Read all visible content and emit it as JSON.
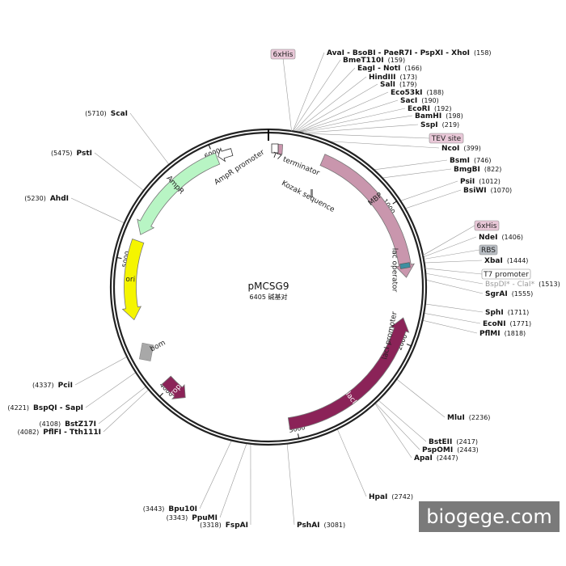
{
  "plasmid": {
    "name": "pMCSG9",
    "size": "6405 碱基对"
  },
  "watermark": "biogege.com",
  "colors": {
    "backbone": "#222222",
    "MBP": "#c996ad",
    "lacI": "#8b2358",
    "AmpR": "#b8f5c4",
    "ori": "#f5f500",
    "rop": "#8b2358",
    "bom": "#a8a8a8",
    "AmpR_promoter": "#ffffff",
    "lac_operator": "#3c8fa0",
    "T7_terminator": "#c996ad",
    "tag_fill": "#e9c8d8",
    "tag_grey": "#b9bec4"
  },
  "ticks": [
    {
      "bp": 1000,
      "label": "1000"
    },
    {
      "bp": 2000,
      "label": "2000"
    },
    {
      "bp": 3000,
      "label": "3000"
    },
    {
      "bp": 4000,
      "label": "4000"
    },
    {
      "bp": 5000,
      "label": "5000"
    },
    {
      "bp": 6000,
      "label": "6000"
    }
  ],
  "features": [
    {
      "name": "MBP",
      "label": "MBP",
      "start": 410,
      "end": 1530,
      "dir": 1,
      "kind": "arrow"
    },
    {
      "name": "lacI",
      "label": "lacI",
      "start": 1830,
      "end": 3050,
      "dir": -1,
      "kind": "arrow"
    },
    {
      "name": "AmpR",
      "label": "AmpR",
      "start": 5200,
      "end": 6020,
      "dir": -1,
      "kind": "arrow"
    },
    {
      "name": "ori",
      "label": "ori",
      "start": 4560,
      "end": 5150,
      "dir": -1,
      "kind": "arrow"
    },
    {
      "name": "rop",
      "label": "rop",
      "start": 3860,
      "end": 4050,
      "dir": -1,
      "kind": "arrow"
    },
    {
      "name": "bom",
      "label": "bom",
      "start": 4280,
      "end": 4330,
      "dir": 1,
      "kind": "box"
    },
    {
      "name": "AmpR_promoter",
      "label": "AmpR promoter",
      "start": 6030,
      "end": 6135,
      "dir": -1,
      "kind": "arrow"
    },
    {
      "name": "T7_terminator",
      "label": "T7 terminator",
      "start": 60,
      "end": 110,
      "dir": -1,
      "kind": "small"
    },
    {
      "name": "lac_operator",
      "label": "lac operator",
      "start": 1432,
      "end": 1454,
      "dir": 1,
      "kind": "small"
    }
  ],
  "feature_labels": [
    {
      "key": "T7_terminator",
      "text": "T7 terminator"
    },
    {
      "key": "Kozak",
      "text": "Kozak sequence"
    },
    {
      "key": "AmpR_promoter",
      "text": "AmpR promoter"
    },
    {
      "key": "lac_operator",
      "text": "lac operator"
    },
    {
      "key": "lacI_promoter",
      "text": "lacI promoter"
    }
  ],
  "sites": [
    {
      "name": "AvaI - BsoBI - PaeR7I - PspXI - XhoI",
      "pos": "(158)",
      "bp": 158,
      "side": "right"
    },
    {
      "name": "BmeT110I",
      "pos": "(159)",
      "bp": 159,
      "side": "right"
    },
    {
      "name": "EagI - NotI",
      "pos": "(166)",
      "bp": 166,
      "side": "right"
    },
    {
      "name": "HindIII",
      "pos": "(173)",
      "bp": 173,
      "side": "right"
    },
    {
      "name": "SalI",
      "pos": "(179)",
      "bp": 179,
      "side": "right"
    },
    {
      "name": "Eco53kI",
      "pos": "(188)",
      "bp": 188,
      "side": "right"
    },
    {
      "name": "SacI",
      "pos": "(190)",
      "bp": 190,
      "side": "right"
    },
    {
      "name": "EcoRI",
      "pos": "(192)",
      "bp": 192,
      "side": "right"
    },
    {
      "name": "BamHI",
      "pos": "(198)",
      "bp": 198,
      "side": "right"
    },
    {
      "name": "SspI",
      "pos": "(219)",
      "bp": 219,
      "side": "right"
    },
    {
      "name": "NcoI",
      "pos": "(399)",
      "bp": 399,
      "side": "right"
    },
    {
      "name": "BsmI",
      "pos": "(746)",
      "bp": 746,
      "side": "right"
    },
    {
      "name": "BmgBI",
      "pos": "(822)",
      "bp": 822,
      "side": "right"
    },
    {
      "name": "PsiI",
      "pos": "(1012)",
      "bp": 1012,
      "side": "right"
    },
    {
      "name": "BsiWI",
      "pos": "(1070)",
      "bp": 1070,
      "side": "right"
    },
    {
      "name": "NdeI",
      "pos": "(1406)",
      "bp": 1406,
      "side": "right"
    },
    {
      "name": "XbaI",
      "pos": "(1444)",
      "bp": 1444,
      "side": "right"
    },
    {
      "name": "BspDI* - ClaI*",
      "pos": "(1513)",
      "bp": 1513,
      "side": "right",
      "grey": true
    },
    {
      "name": "SgrAI",
      "pos": "(1555)",
      "bp": 1555,
      "side": "right"
    },
    {
      "name": "SphI",
      "pos": "(1711)",
      "bp": 1711,
      "side": "right"
    },
    {
      "name": "EcoNI",
      "pos": "(1771)",
      "bp": 1771,
      "side": "right"
    },
    {
      "name": "PflMI",
      "pos": "(1818)",
      "bp": 1818,
      "side": "right"
    },
    {
      "name": "MluI",
      "pos": "(2236)",
      "bp": 2236,
      "side": "right"
    },
    {
      "name": "BstEII",
      "pos": "(2417)",
      "bp": 2417,
      "side": "right"
    },
    {
      "name": "PspOMI",
      "pos": "(2443)",
      "bp": 2443,
      "side": "right"
    },
    {
      "name": "ApaI",
      "pos": "(2447)",
      "bp": 2447,
      "side": "right"
    },
    {
      "name": "HpaI",
      "pos": "(2742)",
      "bp": 2742,
      "side": "right"
    },
    {
      "name": "PshAI",
      "pos": "(3081)",
      "bp": 3081,
      "side": "left"
    },
    {
      "name": "FspAI",
      "pos": "(3318)",
      "bp": 3318,
      "side": "left"
    },
    {
      "name": "PpuMI",
      "pos": "(3343)",
      "bp": 3343,
      "side": "left"
    },
    {
      "name": "Bpu10I",
      "pos": "(3443)",
      "bp": 3443,
      "side": "left"
    },
    {
      "name": "PflFI - Tth111I",
      "pos": "(4082)",
      "bp": 4082,
      "side": "left"
    },
    {
      "name": "BstZ17I",
      "pos": "(4108)",
      "bp": 4108,
      "side": "left"
    },
    {
      "name": "BspQI - SapI",
      "pos": "(4221)",
      "bp": 4221,
      "side": "left"
    },
    {
      "name": "PciI",
      "pos": "(4337)",
      "bp": 4337,
      "side": "left"
    },
    {
      "name": "AhdI",
      "pos": "(5230)",
      "bp": 5230,
      "side": "left"
    },
    {
      "name": "PstI",
      "pos": "(5475)",
      "bp": 5475,
      "side": "left"
    },
    {
      "name": "ScaI",
      "pos": "(5710)",
      "bp": 5710,
      "side": "left"
    }
  ],
  "tags": [
    {
      "key": "6xHis_top",
      "text": "6xHis",
      "bp": 150,
      "style": "pink"
    },
    {
      "key": "TEV_site",
      "text": "TEV site",
      "bp": 230,
      "style": "pink"
    },
    {
      "key": "6xHis_right",
      "text": "6xHis",
      "bp": 1395,
      "style": "pink"
    },
    {
      "key": "RBS",
      "text": "RBS",
      "bp": 1420,
      "style": "grey"
    },
    {
      "key": "T7_promoter",
      "text": "T7 promoter",
      "bp": 1480,
      "style": "white"
    }
  ]
}
